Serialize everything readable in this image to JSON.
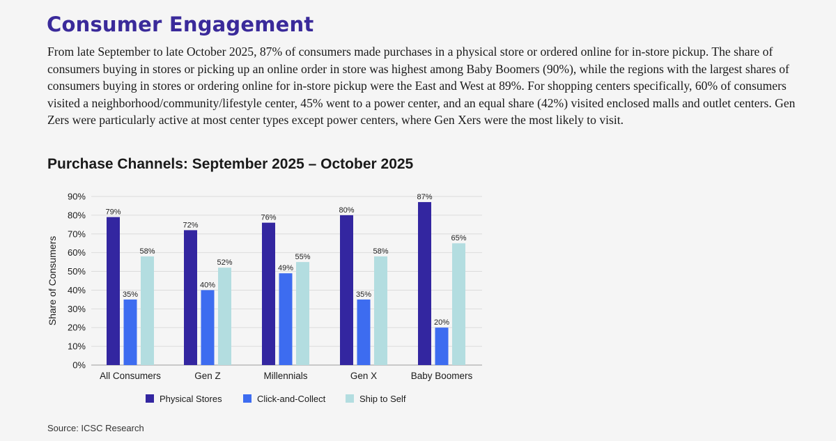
{
  "header": {
    "title": "Consumer Engagement",
    "paragraph": "From late September to late October 2025, 87% of consumers made purchases in a physical store or ordered online for in-store pickup. The share of consumers buying in stores or picking up an online order in store was highest among Baby Boomers (90%), while the regions with the largest shares of consumers buying in stores or ordering online for in-store pickup were the East and West at 89%. For shopping centers specifically, 60% of consumers visited a neighborhood/community/lifestyle center, 45% went to a power center, and an equal share (42%) visited enclosed malls and outlet centers. Gen Zers were particularly active at most center types except power centers, where Gen Xers were the most likely to visit."
  },
  "footer": {
    "source": "Source: ICSC Research"
  },
  "colors": {
    "title": "#3a2a9a",
    "physical": "#3326a0",
    "click": "#3d6cf0",
    "ship": "#b3dde0"
  },
  "chart_data": {
    "type": "bar",
    "title": "Purchase Channels: September 2025 – October 2025",
    "xlabel": "",
    "ylabel": "Share of Consumers",
    "ylim": [
      0,
      90
    ],
    "yticks": [
      0,
      10,
      20,
      30,
      40,
      50,
      60,
      70,
      80,
      90
    ],
    "ytick_labels": [
      "0%",
      "10%",
      "20%",
      "30%",
      "40%",
      "50%",
      "60%",
      "70%",
      "80%",
      "90%"
    ],
    "grid": true,
    "legend_position": "bottom",
    "categories": [
      "All Consumers",
      "Gen Z",
      "Millennials",
      "Gen X",
      "Baby Boomers"
    ],
    "series": [
      {
        "name": "Physical Stores",
        "color": "#3326a0",
        "values": [
          79,
          72,
          76,
          80,
          87
        ],
        "labels": [
          "79%",
          "72%",
          "76%",
          "80%",
          "87%"
        ]
      },
      {
        "name": "Click-and-Collect",
        "color": "#3d6cf0",
        "values": [
          35,
          40,
          49,
          35,
          20
        ],
        "labels": [
          "35%",
          "40%",
          "49%",
          "35%",
          "20%"
        ]
      },
      {
        "name": "Ship to Self",
        "color": "#b3dde0",
        "values": [
          58,
          52,
          55,
          58,
          65
        ],
        "labels": [
          "58%",
          "52%",
          "55%",
          "58%",
          "65%"
        ]
      }
    ]
  }
}
